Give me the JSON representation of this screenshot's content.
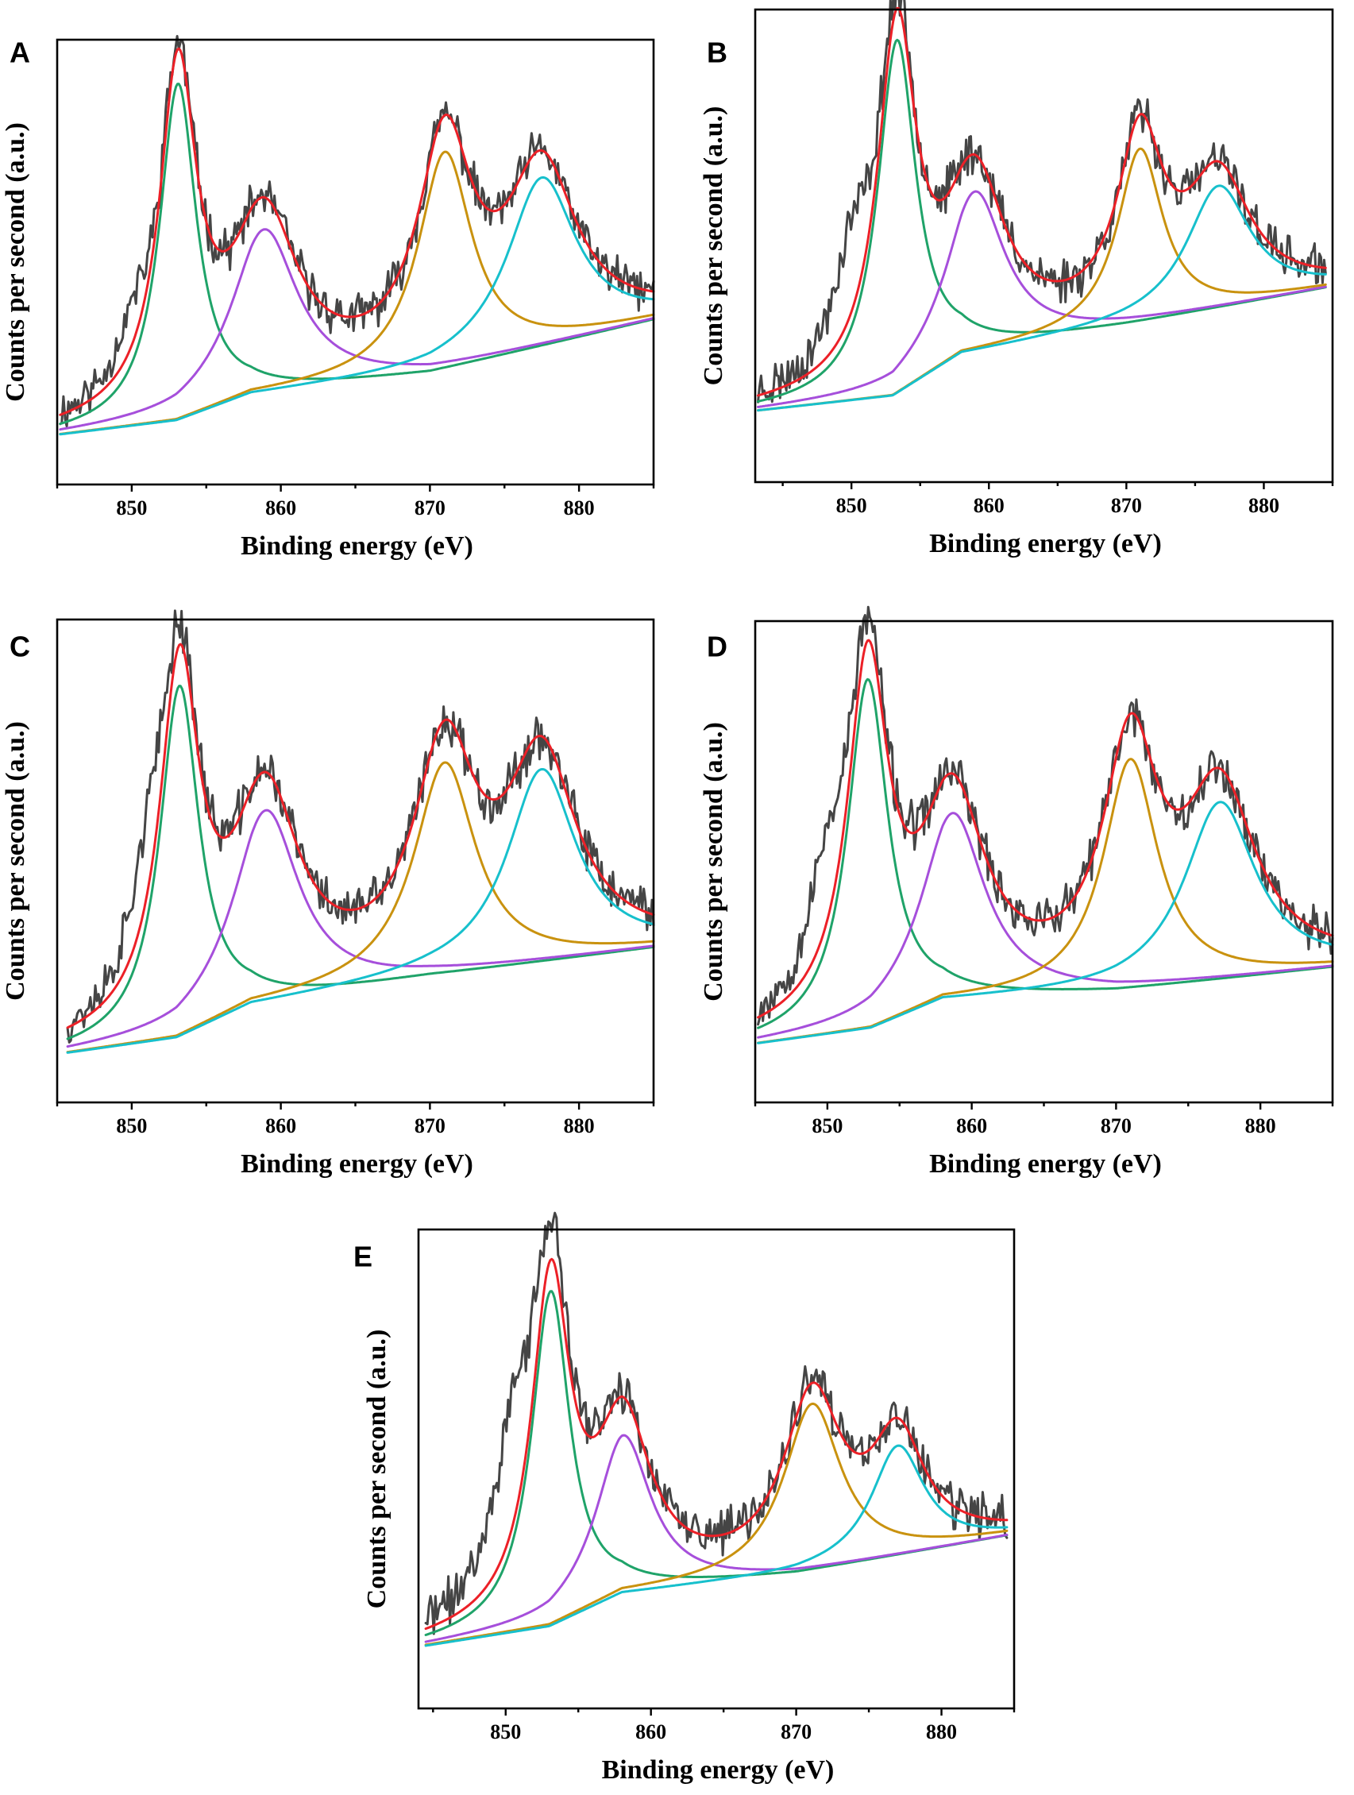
{
  "chart_data": [
    {
      "panel_label": "A",
      "type": "line",
      "xlabel": "Binding energy (eV)",
      "ylabel": "Counts per second (a.u.)",
      "xlim": [
        845,
        885
      ],
      "ylim": [
        0,
        1
      ],
      "xticks": [
        850,
        860,
        870,
        880
      ],
      "x_range": [
        845.2,
        885
      ],
      "noise_seed": 11,
      "baseline": {
        "x": [
          845.2,
          853,
          858,
          870,
          885
        ],
        "y": [
          0.11,
          0.14,
          0.2,
          0.25,
          0.37
        ]
      },
      "components": [
        {
          "name": "green",
          "center": 853.1,
          "width": 1.5,
          "height": 0.76
        },
        {
          "name": "purple",
          "center": 858.9,
          "width": 2.7,
          "height": 0.37
        },
        {
          "name": "orange",
          "center": 871.0,
          "width": 2.2,
          "height": 0.49
        },
        {
          "name": "cyan",
          "center": 877.5,
          "width": 2.8,
          "height": 0.38
        }
      ],
      "raw_extra": {
        "center": 850.0,
        "width": 1.4,
        "height": 0.1
      }
    },
    {
      "panel_label": "B",
      "type": "line",
      "xlabel": "Binding energy (eV)",
      "ylabel": "Counts per second (a.u.)",
      "xlim": [
        843,
        885
      ],
      "ylim": [
        0,
        1
      ],
      "xticks": [
        850,
        860,
        870,
        880
      ],
      "x_range": [
        843.2,
        884.5
      ],
      "noise_seed": 23,
      "baseline": {
        "x": [
          843.2,
          853,
          858,
          870,
          884.5
        ],
        "y": [
          0.15,
          0.18,
          0.27,
          0.33,
          0.41
        ]
      },
      "components": [
        {
          "name": "green",
          "center": 853.3,
          "width": 1.7,
          "height": 0.75
        },
        {
          "name": "purple",
          "center": 859.0,
          "width": 2.6,
          "height": 0.34
        },
        {
          "name": "orange",
          "center": 871.0,
          "width": 2.0,
          "height": 0.37
        },
        {
          "name": "cyan",
          "center": 876.7,
          "width": 2.8,
          "height": 0.26
        }
      ],
      "raw_extra": {
        "center": 850.0,
        "width": 1.6,
        "height": 0.2
      }
    },
    {
      "panel_label": "C",
      "type": "line",
      "xlabel": "Binding energy (eV)",
      "ylabel": "Counts per second (a.u.)",
      "xlim": [
        845,
        885
      ],
      "ylim": [
        0,
        1
      ],
      "xticks": [
        850,
        860,
        870,
        880
      ],
      "x_range": [
        845.7,
        885
      ],
      "noise_seed": 37,
      "baseline": {
        "x": [
          845.7,
          853,
          858,
          870,
          885
        ],
        "y": [
          0.1,
          0.13,
          0.2,
          0.26,
          0.32
        ]
      },
      "components": [
        {
          "name": "green",
          "center": 853.2,
          "width": 1.6,
          "height": 0.73
        },
        {
          "name": "purple",
          "center": 859.0,
          "width": 2.7,
          "height": 0.4
        },
        {
          "name": "orange",
          "center": 871.0,
          "width": 2.5,
          "height": 0.44
        },
        {
          "name": "cyan",
          "center": 877.5,
          "width": 2.8,
          "height": 0.4
        }
      ],
      "raw_extra": {
        "center": 851.0,
        "width": 1.4,
        "height": 0.18
      }
    },
    {
      "panel_label": "D",
      "type": "line",
      "xlabel": "Binding energy (eV)",
      "ylabel": "Counts per second (a.u.)",
      "xlim": [
        845,
        885
      ],
      "ylim": [
        0,
        1
      ],
      "xticks": [
        850,
        860,
        870,
        880
      ],
      "x_range": [
        845.2,
        885
      ],
      "noise_seed": 53,
      "baseline": {
        "x": [
          845.2,
          853,
          858,
          870,
          885
        ],
        "y": [
          0.12,
          0.15,
          0.21,
          0.23,
          0.28
        ]
      },
      "components": [
        {
          "name": "green",
          "center": 852.8,
          "width": 1.7,
          "height": 0.73
        },
        {
          "name": "purple",
          "center": 858.7,
          "width": 2.7,
          "height": 0.39
        },
        {
          "name": "orange",
          "center": 871.0,
          "width": 2.3,
          "height": 0.48
        },
        {
          "name": "cyan",
          "center": 877.2,
          "width": 3.0,
          "height": 0.37
        }
      ],
      "raw_extra": {
        "center": 850.0,
        "width": 1.6,
        "height": 0.2
      }
    },
    {
      "panel_label": "E",
      "type": "line",
      "xlabel": "Binding energy (eV)",
      "ylabel": "Counts per second (a.u.)",
      "xlim": [
        844,
        885
      ],
      "ylim": [
        0,
        1
      ],
      "xticks": [
        850,
        860,
        870,
        880
      ],
      "x_range": [
        844.5,
        884.5
      ],
      "noise_seed": 71,
      "baseline": {
        "x": [
          844.5,
          853,
          858,
          870,
          884.5
        ],
        "y": [
          0.13,
          0.17,
          0.24,
          0.28,
          0.36
        ]
      },
      "components": [
        {
          "name": "green",
          "center": 853.1,
          "width": 1.6,
          "height": 0.7
        },
        {
          "name": "purple",
          "center": 858.1,
          "width": 2.3,
          "height": 0.33
        },
        {
          "name": "orange",
          "center": 871.1,
          "width": 2.4,
          "height": 0.35
        },
        {
          "name": "cyan",
          "center": 877.0,
          "width": 2.2,
          "height": 0.23
        }
      ],
      "raw_extra": {
        "center": 850.5,
        "width": 1.7,
        "height": 0.28
      }
    }
  ],
  "colors": {
    "raw": "#454545",
    "envelope": "#ec2027",
    "green": "#1fa369",
    "purple": "#a64fdb",
    "orange": "#c9920f",
    "cyan": "#17c0cc"
  }
}
